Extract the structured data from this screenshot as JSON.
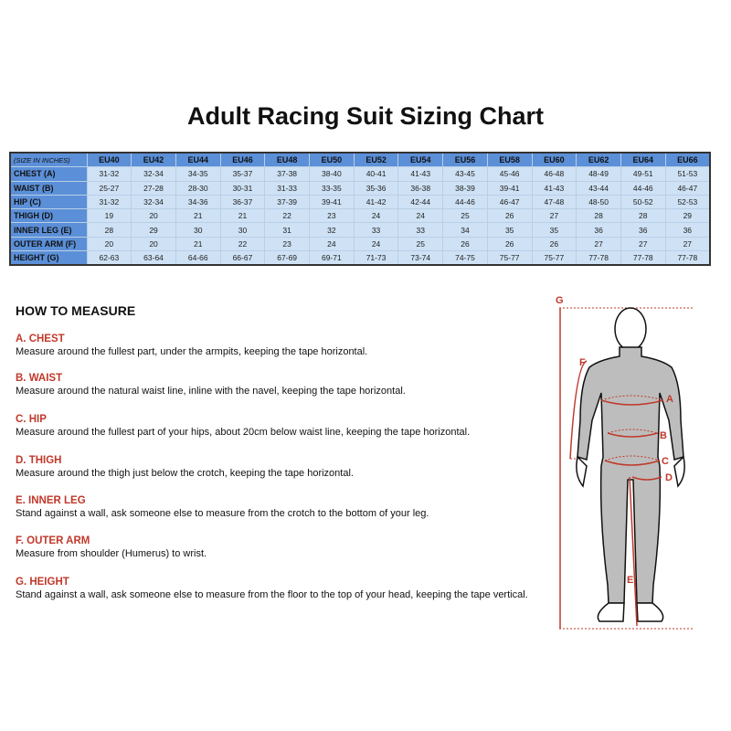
{
  "title": "Adult Racing Suit Sizing Chart",
  "table": {
    "corner": "(SIZE IN INCHES)",
    "sizes": [
      "EU40",
      "EU42",
      "EU44",
      "EU46",
      "EU48",
      "EU50",
      "EU52",
      "EU54",
      "EU56",
      "EU58",
      "EU60",
      "EU62",
      "EU64",
      "EU66"
    ],
    "rows": [
      {
        "label": "CHEST (A)",
        "values": [
          "31-32",
          "32-34",
          "34-35",
          "35-37",
          "37-38",
          "38-40",
          "40-41",
          "41-43",
          "43-45",
          "45-46",
          "46-48",
          "48-49",
          "49-51",
          "51-53"
        ]
      },
      {
        "label": "WAIST (B)",
        "values": [
          "25-27",
          "27-28",
          "28-30",
          "30-31",
          "31-33",
          "33-35",
          "35-36",
          "36-38",
          "38-39",
          "39-41",
          "41-43",
          "43-44",
          "44-46",
          "46-47"
        ]
      },
      {
        "label": "HIP (C)",
        "values": [
          "31-32",
          "32-34",
          "34-36",
          "36-37",
          "37-39",
          "39-41",
          "41-42",
          "42-44",
          "44-46",
          "46-47",
          "47-48",
          "48-50",
          "50-52",
          "52-53"
        ]
      },
      {
        "label": "THIGH (D)",
        "values": [
          "19",
          "20",
          "21",
          "21",
          "22",
          "23",
          "24",
          "24",
          "25",
          "26",
          "27",
          "28",
          "28",
          "29"
        ]
      },
      {
        "label": "INNER LEG (E)",
        "values": [
          "28",
          "29",
          "30",
          "30",
          "31",
          "32",
          "33",
          "33",
          "34",
          "35",
          "35",
          "36",
          "36",
          "36"
        ]
      },
      {
        "label": "OUTER ARM (F)",
        "values": [
          "20",
          "20",
          "21",
          "22",
          "23",
          "24",
          "24",
          "25",
          "26",
          "26",
          "26",
          "27",
          "27",
          "27"
        ]
      },
      {
        "label": "HEIGHT (G)",
        "values": [
          "62-63",
          "63-64",
          "64-66",
          "66-67",
          "67-69",
          "69-71",
          "71-73",
          "73-74",
          "74-75",
          "75-77",
          "75-77",
          "77-78",
          "77-78",
          "77-78"
        ]
      }
    ]
  },
  "how_to": {
    "title": "HOW TO MEASURE",
    "items": [
      {
        "heading": "A. CHEST",
        "text": "Measure around the fullest part, under the armpits, keeping the tape horizontal."
      },
      {
        "heading": "B. WAIST",
        "text": "Measure around the natural waist line, inline with the navel, keeping the tape horizontal."
      },
      {
        "heading": "C. HIP",
        "text": "Measure around the fullest part of your hips, about 20cm below waist line, keeping the tape horizontal."
      },
      {
        "heading": "D. THIGH",
        "text": "Measure around the thigh just below the crotch, keeping the tape horizontal."
      },
      {
        "heading": "E. INNER LEG",
        "text": "Stand against a wall, ask someone else to measure from the crotch to the bottom of your leg."
      },
      {
        "heading": "F. OUTER ARM",
        "text": "Measure from shoulder (Humerus) to wrist."
      },
      {
        "heading": "G. HEIGHT",
        "text": "Stand against a wall, ask someone else to measure from the floor to the top of your head, keeping the tape vertical."
      }
    ]
  },
  "figure": {
    "labels": {
      "A": "A",
      "B": "B",
      "C": "C",
      "D": "D",
      "E": "E",
      "F": "F",
      "G": "G"
    },
    "accent": "#c0392b"
  }
}
